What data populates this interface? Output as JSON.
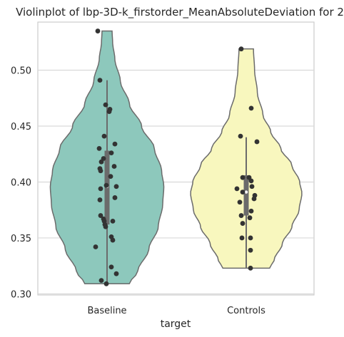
{
  "chart_data": {
    "type": "violin",
    "title": "Violinplot of lbp-3D-k_firstorder_MeanAbsoluteDeviation for 2",
    "xlabel": "target",
    "ylabel": "",
    "ylim": [
      0.299,
      0.543
    ],
    "yticks": [
      "0.30",
      "0.35",
      "0.40",
      "0.45",
      "0.50"
    ],
    "grid": true,
    "categories": [
      "Baseline",
      "Controls"
    ],
    "series": [
      {
        "category": "Baseline",
        "color": "#8dc8bc",
        "range": [
          0.309,
          0.535
        ],
        "box": {
          "q1": 0.362,
          "median": 0.396,
          "q3": 0.428,
          "whisker_low": 0.309,
          "whisker_high": 0.491
        },
        "density": [
          [
            0.309,
            0.4
          ],
          [
            0.32,
            0.55
          ],
          [
            0.34,
            0.75
          ],
          [
            0.36,
            0.92
          ],
          [
            0.38,
            1.0
          ],
          [
            0.396,
            1.02
          ],
          [
            0.41,
            0.98
          ],
          [
            0.43,
            0.85
          ],
          [
            0.45,
            0.62
          ],
          [
            0.47,
            0.4
          ],
          [
            0.49,
            0.24
          ],
          [
            0.51,
            0.14
          ],
          [
            0.525,
            0.1
          ],
          [
            0.535,
            0.09
          ]
        ],
        "points": [
          {
            "x": -0.13,
            "y": 0.535
          },
          {
            "x": -0.1,
            "y": 0.491
          },
          {
            "x": -0.02,
            "y": 0.469
          },
          {
            "x": 0.04,
            "y": 0.465
          },
          {
            "x": 0.03,
            "y": 0.463
          },
          {
            "x": -0.04,
            "y": 0.441
          },
          {
            "x": 0.11,
            "y": 0.434
          },
          {
            "x": -0.11,
            "y": 0.43
          },
          {
            "x": 0.06,
            "y": 0.426
          },
          {
            "x": -0.05,
            "y": 0.421
          },
          {
            "x": -0.08,
            "y": 0.418
          },
          {
            "x": 0.1,
            "y": 0.414
          },
          {
            "x": -0.1,
            "y": 0.412
          },
          {
            "x": -0.09,
            "y": 0.41
          },
          {
            "x": 0.05,
            "y": 0.405
          },
          {
            "x": -0.01,
            "y": 0.397
          },
          {
            "x": 0.13,
            "y": 0.396
          },
          {
            "x": -0.09,
            "y": 0.394
          },
          {
            "x": 0.11,
            "y": 0.386
          },
          {
            "x": -0.1,
            "y": 0.384
          },
          {
            "x": -0.09,
            "y": 0.37
          },
          {
            "x": -0.05,
            "y": 0.367
          },
          {
            "x": -0.04,
            "y": 0.365
          },
          {
            "x": 0.08,
            "y": 0.365
          },
          {
            "x": -0.03,
            "y": 0.362
          },
          {
            "x": -0.02,
            "y": 0.36
          },
          {
            "x": 0.06,
            "y": 0.351
          },
          {
            "x": 0.08,
            "y": 0.348
          },
          {
            "x": -0.16,
            "y": 0.342
          },
          {
            "x": 0.06,
            "y": 0.324
          },
          {
            "x": 0.13,
            "y": 0.318
          },
          {
            "x": -0.08,
            "y": 0.312
          },
          {
            "x": -0.01,
            "y": 0.309
          }
        ]
      },
      {
        "category": "Controls",
        "color": "#f8f7be",
        "range": [
          0.323,
          0.519
        ],
        "box": {
          "q1": 0.37,
          "median": 0.391,
          "q3": 0.406,
          "whisker_low": 0.323,
          "whisker_high": 0.44
        },
        "density": [
          [
            0.323,
            0.42
          ],
          [
            0.33,
            0.5
          ],
          [
            0.345,
            0.65
          ],
          [
            0.36,
            0.82
          ],
          [
            0.375,
            0.95
          ],
          [
            0.39,
            1.0
          ],
          [
            0.4,
            0.96
          ],
          [
            0.415,
            0.82
          ],
          [
            0.43,
            0.62
          ],
          [
            0.445,
            0.44
          ],
          [
            0.46,
            0.3
          ],
          [
            0.48,
            0.2
          ],
          [
            0.5,
            0.15
          ],
          [
            0.519,
            0.13
          ]
        ],
        "points": [
          {
            "x": -0.07,
            "y": 0.519
          },
          {
            "x": 0.07,
            "y": 0.466
          },
          {
            "x": -0.08,
            "y": 0.441
          },
          {
            "x": 0.15,
            "y": 0.436
          },
          {
            "x": -0.05,
            "y": 0.404
          },
          {
            "x": 0.04,
            "y": 0.404
          },
          {
            "x": 0.07,
            "y": 0.401
          },
          {
            "x": 0.08,
            "y": 0.396
          },
          {
            "x": -0.13,
            "y": 0.394
          },
          {
            "x": -0.05,
            "y": 0.391
          },
          {
            "x": 0.12,
            "y": 0.388
          },
          {
            "x": 0.11,
            "y": 0.385
          },
          {
            "x": -0.09,
            "y": 0.382
          },
          {
            "x": 0.07,
            "y": 0.374
          },
          {
            "x": -0.07,
            "y": 0.37
          },
          {
            "x": 0.05,
            "y": 0.368
          },
          {
            "x": -0.05,
            "y": 0.363
          },
          {
            "x": -0.06,
            "y": 0.35
          },
          {
            "x": 0.06,
            "y": 0.35
          },
          {
            "x": 0.06,
            "y": 0.339
          },
          {
            "x": 0.06,
            "y": 0.323
          }
        ]
      }
    ]
  }
}
